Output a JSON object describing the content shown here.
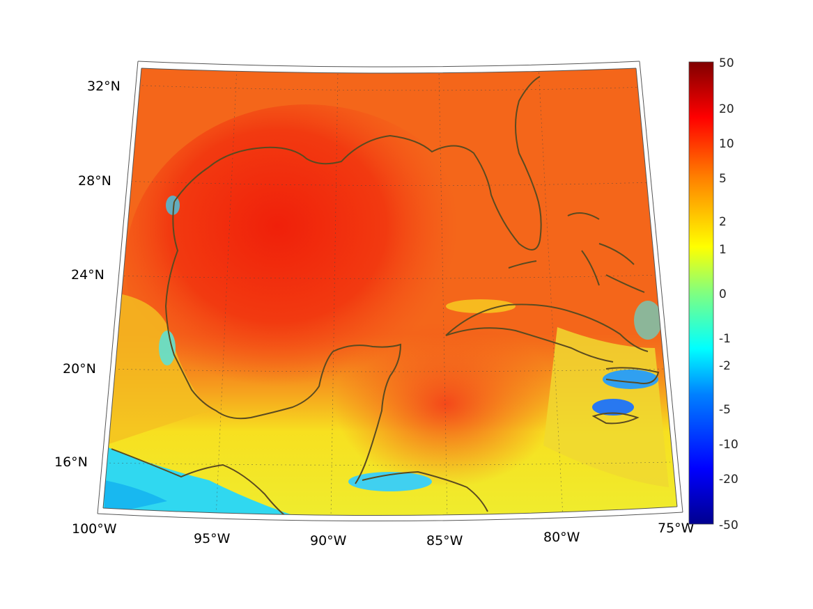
{
  "map": {
    "projection": "conic",
    "region": "Gulf of Mexico",
    "lat_ticks": [
      "32°N",
      "28°N",
      "24°N",
      "20°N",
      "16°N"
    ],
    "lon_ticks": [
      "100°W",
      "95°W",
      "90°W",
      "85°W",
      "80°W",
      "75°W"
    ],
    "coastline_color": "#5a4a20",
    "grid_lines": "dotted"
  },
  "colorbar": {
    "labels": [
      "50",
      "20",
      "10",
      "5",
      "2",
      "1",
      "0",
      "-1",
      "-2",
      "-5",
      "-10",
      "-20",
      "-50"
    ],
    "colormap": "jet",
    "colors": [
      "#00008f",
      "#0000ff",
      "#0080ff",
      "#00ffff",
      "#80ff80",
      "#ffff00",
      "#ff8000",
      "#ff0000",
      "#800000"
    ]
  }
}
